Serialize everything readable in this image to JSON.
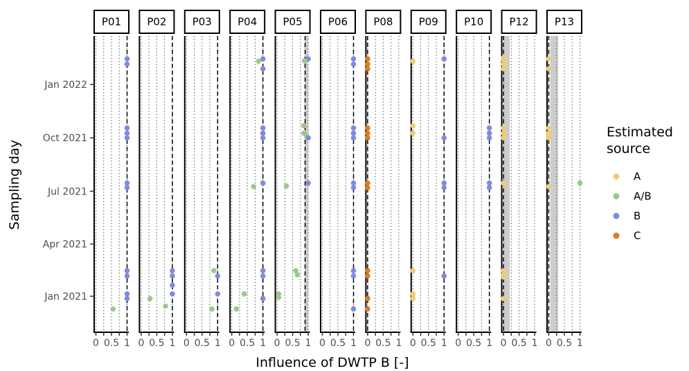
{
  "chart_data": {
    "type": "scatter",
    "xlabel": "Influence of DWTP B [-]",
    "ylabel": "Sampling day",
    "xlim": [
      0,
      1
    ],
    "x_ticks": [
      "0",
      "0.5",
      "1"
    ],
    "y_ticks": [
      "Jan 2021",
      "Apr 2021",
      "Jul 2021",
      "Oct 2021",
      "Jan 2022"
    ],
    "y_tick_dates": [
      "2021-01-01",
      "2021-04-01",
      "2021-07-01",
      "2021-10-01",
      "2022-01-01"
    ],
    "grid": "dotted vertical",
    "legend": {
      "title": "Estimated source",
      "placement": "right",
      "entries": [
        {
          "label": "A",
          "color": "#EECC77"
        },
        {
          "label": "A/B",
          "color": "#99C98A"
        },
        {
          "label": "B",
          "color": "#7F8BDD"
        },
        {
          "label": "C",
          "color": "#DE7A1C"
        }
      ]
    },
    "panels": [
      {
        "name": "P01",
        "reference_x": 1.0,
        "band": null,
        "points": [
          {
            "date": "2022-02-14",
            "x": 1.0,
            "source": "B"
          },
          {
            "date": "2022-02-05",
            "x": 1.0,
            "source": "B"
          },
          {
            "date": "2021-10-18",
            "x": 1.0,
            "source": "B"
          },
          {
            "date": "2021-10-09",
            "x": 1.0,
            "source": "B"
          },
          {
            "date": "2021-10-01",
            "x": 1.0,
            "source": "B"
          },
          {
            "date": "2021-07-15",
            "x": 1.0,
            "source": "B"
          },
          {
            "date": "2021-07-07",
            "x": 1.0,
            "source": "B"
          },
          {
            "date": "2021-02-14",
            "x": 1.0,
            "source": "B"
          },
          {
            "date": "2021-02-05",
            "x": 1.0,
            "source": "B"
          },
          {
            "date": "2021-01-05",
            "x": 1.0,
            "source": "B"
          },
          {
            "date": "2020-12-28",
            "x": 1.0,
            "source": "B"
          },
          {
            "date": "2020-12-10",
            "x": 0.55,
            "source": "A/B"
          }
        ]
      },
      {
        "name": "P02",
        "reference_x": 1.0,
        "band": null,
        "points": [
          {
            "date": "2021-02-14",
            "x": 1.0,
            "source": "B"
          },
          {
            "date": "2021-02-05",
            "x": 1.0,
            "source": "B"
          },
          {
            "date": "2021-01-20",
            "x": 1.0,
            "source": "B"
          },
          {
            "date": "2021-01-05",
            "x": 1.0,
            "source": "B"
          },
          {
            "date": "2020-12-28",
            "x": 0.28,
            "source": "A/B"
          },
          {
            "date": "2020-12-15",
            "x": 0.78,
            "source": "A/B"
          }
        ]
      },
      {
        "name": "P03",
        "reference_x": 1.0,
        "band": null,
        "points": [
          {
            "date": "2021-02-14",
            "x": 0.88,
            "source": "A/B"
          },
          {
            "date": "2021-02-05",
            "x": 1.0,
            "source": "B"
          },
          {
            "date": "2021-01-05",
            "x": 1.0,
            "source": "B"
          },
          {
            "date": "2020-12-10",
            "x": 0.82,
            "source": "A/B"
          }
        ]
      },
      {
        "name": "P04",
        "reference_x": 1.0,
        "band": null,
        "points": [
          {
            "date": "2022-02-14",
            "x": 1.0,
            "source": "B"
          },
          {
            "date": "2022-02-10",
            "x": 0.86,
            "source": "A/B"
          },
          {
            "date": "2022-01-28",
            "x": 1.0,
            "source": "B"
          },
          {
            "date": "2021-10-18",
            "x": 1.0,
            "source": "B"
          },
          {
            "date": "2021-10-09",
            "x": 1.0,
            "source": "B"
          },
          {
            "date": "2021-10-01",
            "x": 1.0,
            "source": "B"
          },
          {
            "date": "2021-07-15",
            "x": 1.0,
            "source": "B"
          },
          {
            "date": "2021-07-09",
            "x": 0.7,
            "source": "A/B"
          },
          {
            "date": "2021-02-14",
            "x": 1.0,
            "source": "B"
          },
          {
            "date": "2021-02-05",
            "x": 1.0,
            "source": "B"
          },
          {
            "date": "2021-01-05",
            "x": 0.4,
            "source": "A/B"
          },
          {
            "date": "2020-12-28",
            "x": 1.0,
            "source": "B"
          },
          {
            "date": "2020-12-10",
            "x": 0.15,
            "source": "A/B"
          }
        ]
      },
      {
        "name": "P05",
        "reference_x": 0.9,
        "band": [
          0.88,
          1.0
        ],
        "points": [
          {
            "date": "2022-02-14",
            "x": 1.0,
            "source": "B"
          },
          {
            "date": "2022-02-11",
            "x": 0.88,
            "source": "A/B"
          },
          {
            "date": "2021-10-22",
            "x": 0.86,
            "source": "A/B"
          },
          {
            "date": "2021-10-09",
            "x": 0.86,
            "source": "A/B"
          },
          {
            "date": "2021-10-04",
            "x": 0.95,
            "source": "A/B"
          },
          {
            "date": "2021-10-01",
            "x": 1.0,
            "source": "B"
          },
          {
            "date": "2021-07-15",
            "x": 1.0,
            "source": "B"
          },
          {
            "date": "2021-07-10",
            "x": 0.3,
            "source": "A/B"
          },
          {
            "date": "2021-02-14",
            "x": 0.6,
            "source": "A/B"
          },
          {
            "date": "2021-02-07",
            "x": 0.65,
            "source": "A/B"
          },
          {
            "date": "2021-01-05",
            "x": 0.05,
            "source": "A/B"
          },
          {
            "date": "2020-12-30",
            "x": 0.05,
            "source": "A/B"
          }
        ]
      },
      {
        "name": "P06",
        "reference_x": 1.0,
        "band": null,
        "points": [
          {
            "date": "2022-02-14",
            "x": 1.0,
            "source": "B"
          },
          {
            "date": "2022-02-05",
            "x": 1.0,
            "source": "B"
          },
          {
            "date": "2021-10-18",
            "x": 1.0,
            "source": "B"
          },
          {
            "date": "2021-10-09",
            "x": 1.0,
            "source": "B"
          },
          {
            "date": "2021-10-01",
            "x": 1.0,
            "source": "B"
          },
          {
            "date": "2021-07-15",
            "x": 1.0,
            "source": "B"
          },
          {
            "date": "2021-07-07",
            "x": 1.0,
            "source": "B"
          },
          {
            "date": "2021-02-14",
            "x": 1.0,
            "source": "B"
          },
          {
            "date": "2021-02-05",
            "x": 1.0,
            "source": "B"
          },
          {
            "date": "2020-12-10",
            "x": 1.0,
            "source": "B"
          }
        ]
      },
      {
        "name": "P08",
        "reference_x": 0.0,
        "band": null,
        "points": [
          {
            "date": "2022-02-14",
            "x": 0.0,
            "source": "C"
          },
          {
            "date": "2022-02-05",
            "x": 0.0,
            "source": "C"
          },
          {
            "date": "2022-01-28",
            "x": 0.0,
            "source": "C"
          },
          {
            "date": "2021-10-18",
            "x": 0.0,
            "source": "C"
          },
          {
            "date": "2021-10-09",
            "x": 0.0,
            "source": "C"
          },
          {
            "date": "2021-10-01",
            "x": 0.0,
            "source": "C"
          },
          {
            "date": "2021-07-15",
            "x": 0.0,
            "source": "C"
          },
          {
            "date": "2021-07-07",
            "x": 0.0,
            "source": "C"
          },
          {
            "date": "2021-02-14",
            "x": 0.0,
            "source": "C"
          },
          {
            "date": "2021-02-05",
            "x": 0.0,
            "source": "C"
          },
          {
            "date": "2020-12-28",
            "x": 0.0,
            "source": "C"
          },
          {
            "date": "2020-12-10",
            "x": 0.0,
            "source": "C"
          }
        ]
      },
      {
        "name": "P09",
        "reference_x": 1.0,
        "band": null,
        "points": [
          {
            "date": "2022-02-14",
            "x": 1.0,
            "source": "B"
          },
          {
            "date": "2022-02-10",
            "x": 0.0,
            "source": "A"
          },
          {
            "date": "2021-10-22",
            "x": 0.0,
            "source": "A"
          },
          {
            "date": "2021-10-09",
            "x": 0.0,
            "source": "A"
          },
          {
            "date": "2021-10-01",
            "x": 1.0,
            "source": "B"
          },
          {
            "date": "2021-07-15",
            "x": 1.0,
            "source": "B"
          },
          {
            "date": "2021-07-07",
            "x": 1.0,
            "source": "B"
          },
          {
            "date": "2021-02-14",
            "x": 0.0,
            "source": "A"
          },
          {
            "date": "2021-02-05",
            "x": 1.0,
            "source": "B"
          },
          {
            "date": "2021-01-05",
            "x": 0.0,
            "source": "A"
          },
          {
            "date": "2020-12-28",
            "x": 0.0,
            "source": "A"
          }
        ]
      },
      {
        "name": "P10",
        "reference_x": 1.0,
        "band": null,
        "points": [
          {
            "date": "2021-10-18",
            "x": 1.0,
            "source": "B"
          },
          {
            "date": "2021-10-09",
            "x": 1.0,
            "source": "B"
          },
          {
            "date": "2021-10-01",
            "x": 1.0,
            "source": "B"
          },
          {
            "date": "2021-07-15",
            "x": 1.0,
            "source": "B"
          },
          {
            "date": "2021-07-07",
            "x": 1.0,
            "source": "B"
          }
        ]
      },
      {
        "name": "P12",
        "reference_x": 0.0,
        "band": [
          0.0,
          0.2
        ],
        "points": [
          {
            "date": "2022-02-16",
            "x": 0.0,
            "source": "A"
          },
          {
            "date": "2022-02-12",
            "x": 0.0,
            "source": "A"
          },
          {
            "date": "2022-02-05",
            "x": 0.0,
            "source": "A"
          },
          {
            "date": "2022-01-28",
            "x": 0.0,
            "source": "A"
          },
          {
            "date": "2021-10-18",
            "x": 0.0,
            "source": "A"
          },
          {
            "date": "2021-10-09",
            "x": 0.0,
            "source": "A"
          },
          {
            "date": "2021-10-01",
            "x": 0.0,
            "source": "A"
          },
          {
            "date": "2021-07-15",
            "x": 0.0,
            "source": "A"
          },
          {
            "date": "2021-02-14",
            "x": 0.0,
            "source": "A"
          },
          {
            "date": "2021-02-07",
            "x": 0.0,
            "source": "A"
          },
          {
            "date": "2021-02-03",
            "x": 0.0,
            "source": "A"
          },
          {
            "date": "2020-12-28",
            "x": 0.0,
            "source": "A"
          }
        ]
      },
      {
        "name": "P13",
        "reference_x": 0.0,
        "band": [
          0.05,
          0.3
        ],
        "points": [
          {
            "date": "2022-02-14",
            "x": 0.0,
            "source": "A"
          },
          {
            "date": "2022-01-28",
            "x": 0.0,
            "source": "A"
          },
          {
            "date": "2021-10-18",
            "x": 0.0,
            "source": "A"
          },
          {
            "date": "2021-10-09",
            "x": 0.0,
            "source": "A"
          },
          {
            "date": "2021-10-04",
            "x": 0.0,
            "source": "A"
          },
          {
            "date": "2021-10-01",
            "x": 0.0,
            "source": "A"
          },
          {
            "date": "2021-07-15",
            "x": 1.0,
            "source": "A/B"
          },
          {
            "date": "2021-07-09",
            "x": 0.0,
            "source": "A"
          }
        ]
      }
    ]
  }
}
